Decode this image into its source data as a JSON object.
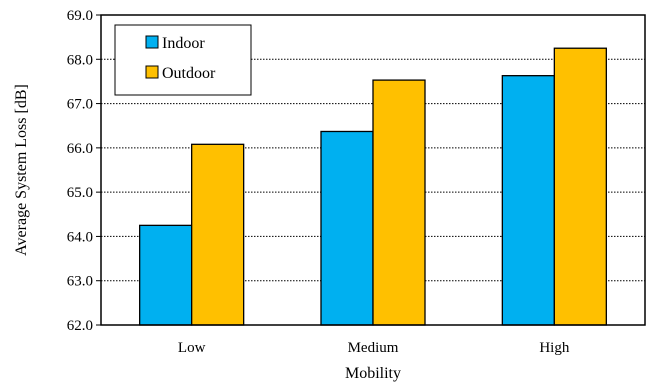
{
  "chart_data": {
    "type": "bar",
    "title": "",
    "xlabel": "Mobility",
    "ylabel": "Average System Loss [dB]",
    "categories": [
      "Low",
      "Medium",
      "High"
    ],
    "series": [
      {
        "name": "Indoor",
        "color": "#00B0F0",
        "values": [
          64.25,
          66.37,
          67.63
        ]
      },
      {
        "name": "Outdoor",
        "color": "#FFC000",
        "values": [
          66.08,
          67.53,
          68.25
        ]
      }
    ],
    "ylim": [
      62.0,
      69.0
    ],
    "yticks": [
      "62.0",
      "63.0",
      "64.0",
      "65.0",
      "66.0",
      "67.0",
      "68.0",
      "69.0"
    ],
    "grid": true,
    "legend_position": "top-left"
  }
}
